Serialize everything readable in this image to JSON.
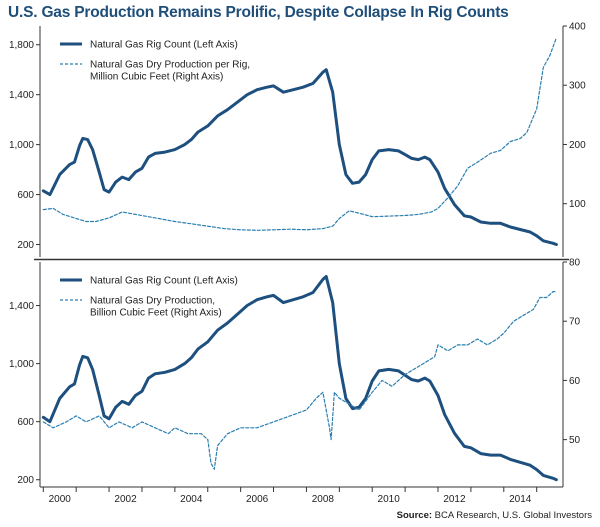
{
  "title": "U.S. Gas Production Remains Prolific, Despite Collapse In Rig Counts",
  "source_label": "Source:",
  "source_text": " BCA Research, U.S. Global Investors",
  "colors": {
    "rig_line": "#1d4f7f",
    "production_line": "#2a7fb0",
    "axis": "#333333",
    "title": "#1f4e79"
  },
  "chart_data": [
    {
      "type": "line",
      "panel": "top",
      "x_ticks": [
        "2000",
        "2002",
        "2004",
        "2006",
        "2008",
        "2010",
        "2012",
        "2014"
      ],
      "xlim": [
        1999.9,
        2015.8
      ],
      "left_axis": {
        "ticks": [
          "200",
          "600",
          "1,000",
          "1,400",
          "1,800"
        ],
        "ylim": [
          100,
          1950
        ]
      },
      "right_axis": {
        "ticks": [
          "100",
          "200",
          "300",
          "400"
        ],
        "ylim": [
          10,
          400
        ]
      },
      "legend_placement": "top-left",
      "series": [
        {
          "name": "Natural Gas Rig Count (Left Axis)",
          "axis": "left",
          "style": "solid",
          "points": [
            [
              2000.0,
              630
            ],
            [
              2000.2,
              600
            ],
            [
              2000.5,
              760
            ],
            [
              2000.8,
              840
            ],
            [
              2000.95,
              860
            ],
            [
              2001.1,
              990
            ],
            [
              2001.2,
              1050
            ],
            [
              2001.35,
              1040
            ],
            [
              2001.5,
              960
            ],
            [
              2001.7,
              780
            ],
            [
              2001.85,
              640
            ],
            [
              2002.0,
              620
            ],
            [
              2002.2,
              700
            ],
            [
              2002.4,
              740
            ],
            [
              2002.6,
              720
            ],
            [
              2002.8,
              780
            ],
            [
              2003.0,
              810
            ],
            [
              2003.2,
              900
            ],
            [
              2003.4,
              930
            ],
            [
              2003.7,
              940
            ],
            [
              2004.0,
              960
            ],
            [
              2004.3,
              1000
            ],
            [
              2004.5,
              1040
            ],
            [
              2004.7,
              1100
            ],
            [
              2005.0,
              1150
            ],
            [
              2005.3,
              1230
            ],
            [
              2005.6,
              1280
            ],
            [
              2005.9,
              1340
            ],
            [
              2006.2,
              1400
            ],
            [
              2006.5,
              1440
            ],
            [
              2006.8,
              1460
            ],
            [
              2007.0,
              1470
            ],
            [
              2007.3,
              1420
            ],
            [
              2007.6,
              1440
            ],
            [
              2007.9,
              1460
            ],
            [
              2008.2,
              1490
            ],
            [
              2008.5,
              1580
            ],
            [
              2008.6,
              1600
            ],
            [
              2008.8,
              1420
            ],
            [
              2009.0,
              1000
            ],
            [
              2009.2,
              760
            ],
            [
              2009.4,
              690
            ],
            [
              2009.6,
              700
            ],
            [
              2009.8,
              760
            ],
            [
              2010.0,
              880
            ],
            [
              2010.2,
              950
            ],
            [
              2010.5,
              960
            ],
            [
              2010.8,
              950
            ],
            [
              2011.0,
              920
            ],
            [
              2011.2,
              890
            ],
            [
              2011.4,
              880
            ],
            [
              2011.6,
              900
            ],
            [
              2011.75,
              880
            ],
            [
              2012.0,
              780
            ],
            [
              2012.2,
              650
            ],
            [
              2012.5,
              520
            ],
            [
              2012.8,
              430
            ],
            [
              2013.0,
              420
            ],
            [
              2013.3,
              380
            ],
            [
              2013.6,
              370
            ],
            [
              2013.9,
              370
            ],
            [
              2014.2,
              340
            ],
            [
              2014.5,
              320
            ],
            [
              2014.8,
              300
            ],
            [
              2015.0,
              270
            ],
            [
              2015.2,
              230
            ],
            [
              2015.5,
              210
            ],
            [
              2015.6,
              200
            ]
          ]
        },
        {
          "name": "Natural Gas Dry Production per Rig, Million Cubic Feet (Right Axis)",
          "axis": "right",
          "style": "dashed",
          "points": [
            [
              2000.0,
              90
            ],
            [
              2000.3,
              92
            ],
            [
              2000.6,
              82
            ],
            [
              2001.0,
              75
            ],
            [
              2001.3,
              70
            ],
            [
              2001.6,
              70
            ],
            [
              2002.0,
              76
            ],
            [
              2002.4,
              86
            ],
            [
              2002.8,
              82
            ],
            [
              2003.2,
              78
            ],
            [
              2003.6,
              74
            ],
            [
              2004.0,
              70
            ],
            [
              2004.5,
              66
            ],
            [
              2005.0,
              62
            ],
            [
              2005.5,
              58
            ],
            [
              2006.0,
              56
            ],
            [
              2006.5,
              55
            ],
            [
              2007.0,
              56
            ],
            [
              2007.5,
              57
            ],
            [
              2008.0,
              56
            ],
            [
              2008.5,
              58
            ],
            [
              2008.8,
              62
            ],
            [
              2009.0,
              75
            ],
            [
              2009.3,
              88
            ],
            [
              2009.6,
              84
            ],
            [
              2010.0,
              78
            ],
            [
              2010.5,
              79
            ],
            [
              2011.0,
              80
            ],
            [
              2011.4,
              82
            ],
            [
              2011.8,
              86
            ],
            [
              2012.0,
              92
            ],
            [
              2012.3,
              110
            ],
            [
              2012.6,
              130
            ],
            [
              2012.9,
              160
            ],
            [
              2013.2,
              170
            ],
            [
              2013.6,
              185
            ],
            [
              2013.9,
              190
            ],
            [
              2014.2,
              205
            ],
            [
              2014.5,
              210
            ],
            [
              2014.7,
              220
            ],
            [
              2015.0,
              260
            ],
            [
              2015.2,
              330
            ],
            [
              2015.4,
              350
            ],
            [
              2015.6,
              380
            ]
          ]
        }
      ]
    },
    {
      "type": "line",
      "panel": "bottom",
      "x_ticks": [
        "2000",
        "2002",
        "2004",
        "2006",
        "2008",
        "2010",
        "2012",
        "2014"
      ],
      "xlim": [
        1999.9,
        2015.8
      ],
      "left_axis": {
        "ticks": [
          "200",
          "600",
          "1,000",
          "1,400"
        ],
        "ylim": [
          150,
          1700
        ]
      },
      "right_axis": {
        "ticks": [
          "50",
          "60",
          "70",
          "80"
        ],
        "ylim": [
          42,
          80
        ]
      },
      "legend_placement": "top-left",
      "series": [
        {
          "name": "Natural Gas Rig Count (Left Axis)",
          "axis": "left",
          "style": "solid",
          "points": [
            [
              2000.0,
              630
            ],
            [
              2000.2,
              600
            ],
            [
              2000.5,
              760
            ],
            [
              2000.8,
              840
            ],
            [
              2000.95,
              860
            ],
            [
              2001.1,
              990
            ],
            [
              2001.2,
              1050
            ],
            [
              2001.35,
              1040
            ],
            [
              2001.5,
              960
            ],
            [
              2001.7,
              780
            ],
            [
              2001.85,
              640
            ],
            [
              2002.0,
              620
            ],
            [
              2002.2,
              700
            ],
            [
              2002.4,
              740
            ],
            [
              2002.6,
              720
            ],
            [
              2002.8,
              780
            ],
            [
              2003.0,
              810
            ],
            [
              2003.2,
              900
            ],
            [
              2003.4,
              930
            ],
            [
              2003.7,
              940
            ],
            [
              2004.0,
              960
            ],
            [
              2004.3,
              1000
            ],
            [
              2004.5,
              1040
            ],
            [
              2004.7,
              1100
            ],
            [
              2005.0,
              1150
            ],
            [
              2005.3,
              1230
            ],
            [
              2005.6,
              1280
            ],
            [
              2005.9,
              1340
            ],
            [
              2006.2,
              1400
            ],
            [
              2006.5,
              1440
            ],
            [
              2006.8,
              1460
            ],
            [
              2007.0,
              1470
            ],
            [
              2007.3,
              1420
            ],
            [
              2007.6,
              1440
            ],
            [
              2007.9,
              1460
            ],
            [
              2008.2,
              1490
            ],
            [
              2008.5,
              1580
            ],
            [
              2008.6,
              1600
            ],
            [
              2008.8,
              1420
            ],
            [
              2009.0,
              1000
            ],
            [
              2009.2,
              760
            ],
            [
              2009.4,
              690
            ],
            [
              2009.6,
              700
            ],
            [
              2009.8,
              760
            ],
            [
              2010.0,
              880
            ],
            [
              2010.2,
              950
            ],
            [
              2010.5,
              960
            ],
            [
              2010.8,
              950
            ],
            [
              2011.0,
              920
            ],
            [
              2011.2,
              890
            ],
            [
              2011.4,
              880
            ],
            [
              2011.6,
              900
            ],
            [
              2011.75,
              880
            ],
            [
              2012.0,
              780
            ],
            [
              2012.2,
              650
            ],
            [
              2012.5,
              520
            ],
            [
              2012.8,
              430
            ],
            [
              2013.0,
              420
            ],
            [
              2013.3,
              380
            ],
            [
              2013.6,
              370
            ],
            [
              2013.9,
              370
            ],
            [
              2014.2,
              340
            ],
            [
              2014.5,
              320
            ],
            [
              2014.8,
              300
            ],
            [
              2015.0,
              270
            ],
            [
              2015.2,
              230
            ],
            [
              2015.5,
              210
            ],
            [
              2015.6,
              200
            ]
          ]
        },
        {
          "name": "Natural Gas Dry Production, Billion Cubic Feet (Right Axis)",
          "axis": "right",
          "style": "dashed",
          "points": [
            [
              2000.0,
              53
            ],
            [
              2000.3,
              52
            ],
            [
              2000.7,
              53
            ],
            [
              2001.0,
              54
            ],
            [
              2001.3,
              53
            ],
            [
              2001.7,
              54
            ],
            [
              2002.0,
              52
            ],
            [
              2002.3,
              53
            ],
            [
              2002.7,
              52
            ],
            [
              2003.0,
              53
            ],
            [
              2003.4,
              52
            ],
            [
              2003.8,
              51
            ],
            [
              2004.0,
              52
            ],
            [
              2004.4,
              51
            ],
            [
              2004.8,
              51
            ],
            [
              2005.0,
              50
            ],
            [
              2005.1,
              46
            ],
            [
              2005.2,
              45
            ],
            [
              2005.3,
              49
            ],
            [
              2005.6,
              51
            ],
            [
              2006.0,
              52
            ],
            [
              2006.5,
              52
            ],
            [
              2007.0,
              53
            ],
            [
              2007.5,
              54
            ],
            [
              2008.0,
              55
            ],
            [
              2008.3,
              57
            ],
            [
              2008.5,
              58
            ],
            [
              2008.7,
              52
            ],
            [
              2008.75,
              50
            ],
            [
              2008.85,
              58
            ],
            [
              2009.0,
              57
            ],
            [
              2009.3,
              56
            ],
            [
              2009.6,
              55
            ],
            [
              2010.0,
              58
            ],
            [
              2010.3,
              60
            ],
            [
              2010.6,
              59
            ],
            [
              2011.0,
              61
            ],
            [
              2011.3,
              62
            ],
            [
              2011.6,
              63
            ],
            [
              2011.9,
              64
            ],
            [
              2012.0,
              66
            ],
            [
              2012.3,
              65
            ],
            [
              2012.6,
              66
            ],
            [
              2012.9,
              66
            ],
            [
              2013.2,
              67
            ],
            [
              2013.5,
              66
            ],
            [
              2013.8,
              67
            ],
            [
              2014.0,
              68
            ],
            [
              2014.3,
              70
            ],
            [
              2014.6,
              71
            ],
            [
              2014.9,
              72
            ],
            [
              2015.1,
              74
            ],
            [
              2015.3,
              74
            ],
            [
              2015.5,
              75
            ],
            [
              2015.6,
              75
            ]
          ]
        }
      ]
    }
  ]
}
